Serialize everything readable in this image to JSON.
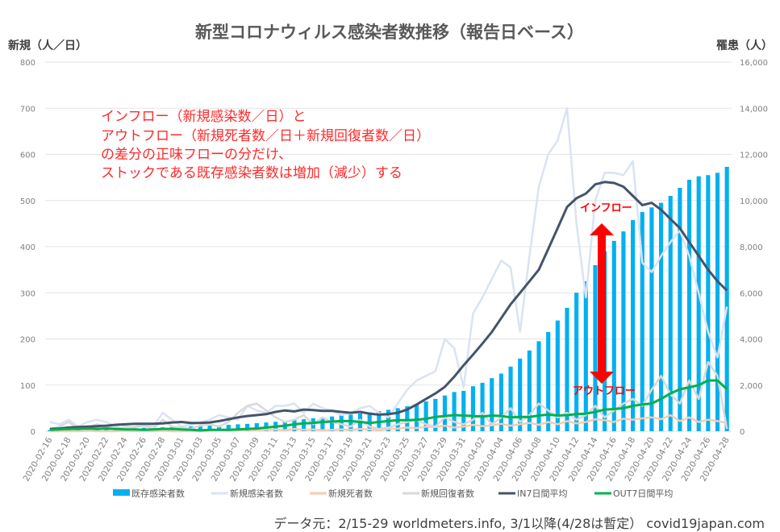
{
  "chart_data": {
    "type": "bar+line",
    "title": "新型コロナウィルス感染者数推移（報告日ベース）",
    "ylabel_left": "新規（人／日）",
    "ylabel_right": "罹患（人）",
    "ylim_left": [
      0,
      800
    ],
    "ylim_right": [
      0,
      16000
    ],
    "yticks_left": [
      "0",
      "100",
      "200",
      "300",
      "400",
      "500",
      "600",
      "700",
      "800"
    ],
    "yticks_right": [
      "0",
      "2,000",
      "4,000",
      "6,000",
      "8,000",
      "10,000",
      "12,000",
      "14,000",
      "16,000"
    ],
    "grid": true,
    "legend_position": "bottom",
    "x": [
      "2020-02-16",
      "2020-02-17",
      "2020-02-18",
      "2020-02-19",
      "2020-02-20",
      "2020-02-21",
      "2020-02-22",
      "2020-02-23",
      "2020-02-24",
      "2020-02-25",
      "2020-02-26",
      "2020-02-27",
      "2020-02-28",
      "2020-02-29",
      "2020-03-01",
      "2020-03-02",
      "2020-03-03",
      "2020-03-04",
      "2020-03-05",
      "2020-03-06",
      "2020-03-07",
      "2020-03-08",
      "2020-03-09",
      "2020-03-10",
      "2020-03-11",
      "2020-03-12",
      "2020-03-13",
      "2020-03-14",
      "2020-03-15",
      "2020-03-16",
      "2020-03-17",
      "2020-03-18",
      "2020-03-19",
      "2020-03-20",
      "2020-03-21",
      "2020-03-22",
      "2020-03-23",
      "2020-03-24",
      "2020-03-25",
      "2020-03-26",
      "2020-03-27",
      "2020-03-28",
      "2020-03-29",
      "2020-03-30",
      "2020-03-31",
      "2020-04-01",
      "2020-04-02",
      "2020-04-03",
      "2020-04-04",
      "2020-04-05",
      "2020-04-06",
      "2020-04-07",
      "2020-04-08",
      "2020-04-09",
      "2020-04-10",
      "2020-04-11",
      "2020-04-12",
      "2020-04-13",
      "2020-04-14",
      "2020-04-15",
      "2020-04-16",
      "2020-04-17",
      "2020-04-18",
      "2020-04-19",
      "2020-04-20",
      "2020-04-21",
      "2020-04-22",
      "2020-04-23",
      "2020-04-24",
      "2020-04-25",
      "2020-04-26",
      "2020-04-27",
      "2020-04-28"
    ],
    "series": [
      {
        "name": "既存感染者数",
        "type": "bar",
        "axis": "right",
        "color": "#00b0f0",
        "values": [
          50,
          60,
          70,
          80,
          90,
          100,
          110,
          120,
          130,
          140,
          150,
          160,
          170,
          180,
          200,
          210,
          220,
          240,
          260,
          280,
          300,
          320,
          350,
          380,
          410,
          440,
          480,
          520,
          560,
          600,
          640,
          680,
          720,
          770,
          820,
          870,
          930,
          1000,
          1080,
          1150,
          1290,
          1400,
          1550,
          1700,
          1750,
          1950,
          2100,
          2300,
          2500,
          2800,
          3150,
          3500,
          3900,
          4300,
          4800,
          5350,
          6000,
          6500,
          7200,
          7800,
          8250,
          8660,
          9150,
          9500,
          9700,
          9900,
          10200,
          10550,
          10900,
          11050,
          11100,
          11200,
          11460
        ]
      },
      {
        "name": "新規感染者数",
        "type": "line",
        "axis": "left",
        "color": "#dae3f3",
        "values": [
          20,
          15,
          25,
          10,
          20,
          25,
          20,
          10,
          5,
          10,
          15,
          10,
          40,
          25,
          10,
          15,
          20,
          25,
          35,
          30,
          25,
          55,
          45,
          40,
          55,
          55,
          60,
          40,
          60,
          50,
          45,
          35,
          40,
          50,
          55,
          40,
          30,
          60,
          90,
          110,
          120,
          130,
          200,
          180,
          95,
          255,
          290,
          330,
          370,
          355,
          215,
          380,
          530,
          600,
          630,
          700,
          450,
          290,
          500,
          560,
          560,
          555,
          585,
          365,
          345,
          380,
          410,
          435,
          380,
          300,
          215,
          160,
          270
        ]
      },
      {
        "name": "新規死者数",
        "type": "line",
        "axis": "left",
        "color": "#f8cbad",
        "values": [
          0,
          0,
          0,
          0,
          1,
          0,
          0,
          0,
          1,
          0,
          1,
          0,
          1,
          0,
          0,
          1,
          0,
          1,
          2,
          1,
          2,
          3,
          2,
          3,
          4,
          2,
          5,
          3,
          4,
          2,
          3,
          4,
          3,
          5,
          4,
          2,
          5,
          6,
          8,
          7,
          10,
          9,
          12,
          8,
          10,
          14,
          11,
          13,
          16,
          12,
          15,
          18,
          14,
          20,
          15,
          22,
          17,
          20,
          26,
          24,
          20,
          27,
          25,
          28,
          30,
          26,
          35,
          22,
          30,
          20,
          25,
          22,
          18
        ]
      },
      {
        "name": "新規回復者数",
        "type": "line",
        "axis": "left",
        "color": "#d9d9d9",
        "values": [
          5,
          10,
          20,
          5,
          8,
          15,
          10,
          5,
          10,
          8,
          12,
          5,
          25,
          10,
          8,
          5,
          12,
          15,
          10,
          20,
          40,
          55,
          60,
          45,
          30,
          20,
          25,
          35,
          15,
          30,
          20,
          15,
          10,
          25,
          10,
          5,
          8,
          15,
          20,
          25,
          15,
          10,
          30,
          20,
          15,
          25,
          40,
          15,
          30,
          50,
          20,
          35,
          60,
          45,
          30,
          40,
          25,
          35,
          55,
          30,
          45,
          60,
          70,
          55,
          90,
          120,
          80,
          60,
          110,
          70,
          150,
          120,
          5
        ]
      },
      {
        "name": "IN7日間平均",
        "type": "line",
        "axis": "left",
        "color": "#44546a",
        "values": [
          5,
          6,
          8,
          9,
          10,
          11,
          12,
          14,
          15,
          16,
          16,
          16,
          17,
          19,
          20,
          18,
          18,
          19,
          22,
          26,
          30,
          33,
          35,
          37,
          42,
          45,
          43,
          47,
          46,
          44,
          44,
          42,
          40,
          42,
          38,
          36,
          37,
          40,
          47,
          58,
          70,
          82,
          96,
          118,
          143,
          166,
          190,
          215,
          245,
          275,
          300,
          325,
          350,
          395,
          440,
          486,
          505,
          515,
          535,
          540,
          538,
          530,
          510,
          490,
          495,
          480,
          460,
          440,
          410,
          380,
          350,
          325,
          305
        ]
      },
      {
        "name": "OUT7日間平均",
        "type": "line",
        "axis": "left",
        "color": "#00b050",
        "values": [
          3,
          4,
          5,
          5,
          6,
          5,
          6,
          5,
          4,
          4,
          3,
          4,
          5,
          5,
          4,
          3,
          2,
          3,
          3,
          3,
          4,
          5,
          6,
          8,
          10,
          12,
          15,
          17,
          18,
          20,
          21,
          22,
          22,
          20,
          18,
          20,
          22,
          24,
          24,
          25,
          27,
          31,
          33,
          35,
          34,
          33,
          32,
          34,
          33,
          30,
          31,
          31,
          34,
          36,
          34,
          35,
          37,
          38,
          42,
          47,
          48,
          50,
          55,
          58,
          60,
          70,
          82,
          91,
          95,
          100,
          110,
          110,
          91
        ]
      }
    ],
    "annotations": {
      "note_lines": [
        "インフロー（新規感染数／日）と",
        "アウトフロー（新規死者数／日＋新規回復者数／日）",
        "の差分の正味フローの分だけ、",
        "ストックである既存感染者数は増加（減少）する"
      ],
      "inflow_label": "インフロー",
      "outflow_label": "アウトフロー",
      "color": "#ff0000"
    }
  },
  "source_credit": "データ元：2/15-29 worldmeters.info, 3/1以降(4/28は暫定）  covid19japan.com"
}
